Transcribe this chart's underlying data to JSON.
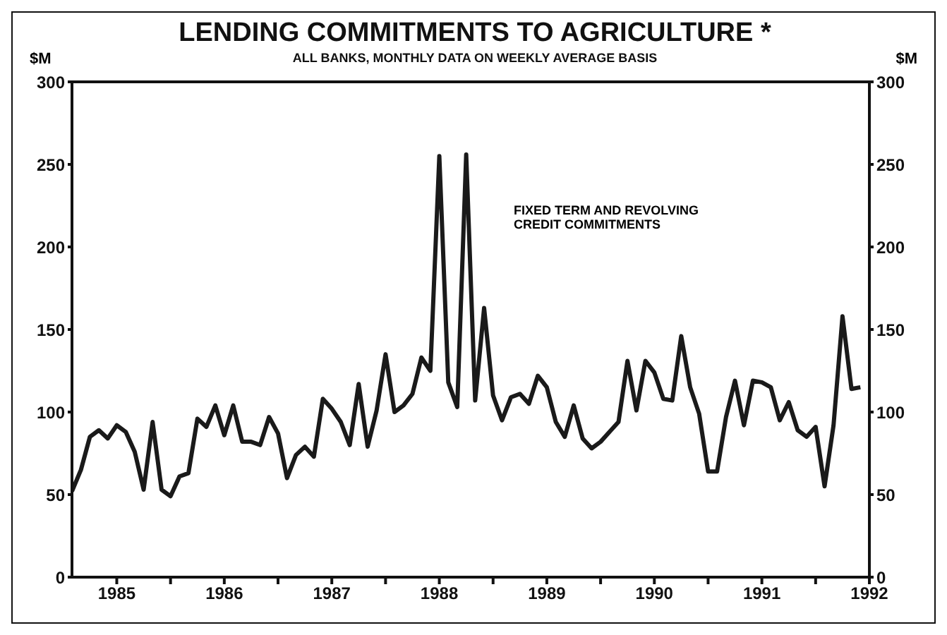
{
  "chart_data": {
    "type": "line",
    "title": "LENDING COMMITMENTS TO AGRICULTURE *",
    "subtitle": "ALL BANKS, MONTHLY DATA ON WEEKLY AVERAGE BASIS",
    "ylabel": "$M",
    "y2label": "$M",
    "annotations": [
      "FIXED TERM AND REVOLVING CREDIT COMMITMENTS"
    ],
    "x": [
      "1985-02",
      "1985-03",
      "1985-04",
      "1985-05",
      "1985-06",
      "1985-07",
      "1985-08",
      "1985-09",
      "1985-10",
      "1985-11",
      "1985-12",
      "1986-01",
      "1986-02",
      "1986-03",
      "1986-04",
      "1986-05",
      "1986-06",
      "1986-07",
      "1986-08",
      "1986-09",
      "1986-10",
      "1986-11",
      "1986-12",
      "1987-01",
      "1987-02",
      "1987-03",
      "1987-04",
      "1987-05",
      "1987-06",
      "1987-07",
      "1987-08",
      "1987-09",
      "1987-10",
      "1987-11",
      "1987-12",
      "1988-01",
      "1988-02",
      "1988-03",
      "1988-04",
      "1988-05",
      "1988-06",
      "1988-07",
      "1988-08",
      "1988-09",
      "1988-10",
      "1988-11",
      "1988-12",
      "1989-01",
      "1989-02",
      "1989-03",
      "1989-04",
      "1989-05",
      "1989-06",
      "1989-07",
      "1989-08",
      "1989-09",
      "1989-10",
      "1989-11",
      "1989-12",
      "1990-01",
      "1990-02",
      "1990-03",
      "1990-04",
      "1990-05",
      "1990-06",
      "1990-07",
      "1990-08",
      "1990-09",
      "1990-10",
      "1990-11",
      "1990-12",
      "1991-01",
      "1991-02",
      "1991-03",
      "1991-04",
      "1991-05",
      "1991-06",
      "1991-07",
      "1991-08",
      "1991-09",
      "1991-10",
      "1991-11",
      "1991-12",
      "1992-01",
      "1992-02",
      "1992-03",
      "1992-04",
      "1992-05",
      "1992-06"
    ],
    "series": [
      {
        "color": "#1a1a1a",
        "values": [
          52,
          65,
          85,
          89,
          84,
          92,
          88,
          76,
          53,
          94,
          53,
          49,
          61,
          63,
          96,
          91,
          104,
          86,
          104,
          82,
          82,
          80,
          97,
          87,
          60,
          74,
          79,
          73,
          108,
          102,
          94,
          80,
          117,
          79,
          101,
          135,
          100,
          104,
          111,
          133,
          125,
          255,
          118,
          103,
          256,
          107,
          163,
          110,
          95,
          109,
          111,
          105,
          122,
          115,
          94,
          85,
          104,
          84,
          78,
          82,
          88,
          94,
          131,
          101,
          131,
          124,
          108,
          107,
          146,
          115,
          99,
          64,
          64,
          97,
          119,
          92,
          119,
          118,
          115,
          95,
          106,
          89,
          85,
          91,
          55,
          92,
          158,
          114,
          115
        ]
      }
    ],
    "xlim": [
      "1985-02",
      "1992-07"
    ],
    "xticks": [
      {
        "value": "1985-07",
        "label": "1985"
      },
      {
        "value": "1986-01",
        "label": null
      },
      {
        "value": "1986-07",
        "label": "1986"
      },
      {
        "value": "1987-01",
        "label": null
      },
      {
        "value": "1987-07",
        "label": "1987"
      },
      {
        "value": "1988-01",
        "label": null
      },
      {
        "value": "1988-07",
        "label": "1988"
      },
      {
        "value": "1989-01",
        "label": null
      },
      {
        "value": "1989-07",
        "label": "1989"
      },
      {
        "value": "1990-01",
        "label": null
      },
      {
        "value": "1990-07",
        "label": "1990"
      },
      {
        "value": "1991-01",
        "label": null
      },
      {
        "value": "1991-07",
        "label": "1991"
      },
      {
        "value": "1992-01",
        "label": null
      },
      {
        "value": "1992-07",
        "label": "1992"
      }
    ],
    "ylim": [
      0,
      300
    ],
    "yticks": [
      0,
      50,
      100,
      150,
      200,
      250,
      300
    ],
    "y2lim": [
      0,
      300
    ],
    "y2ticks": [
      0,
      50,
      100,
      150,
      200,
      250,
      300
    ],
    "grid": false,
    "legend": false,
    "marker": "none",
    "line_style": "solid"
  }
}
